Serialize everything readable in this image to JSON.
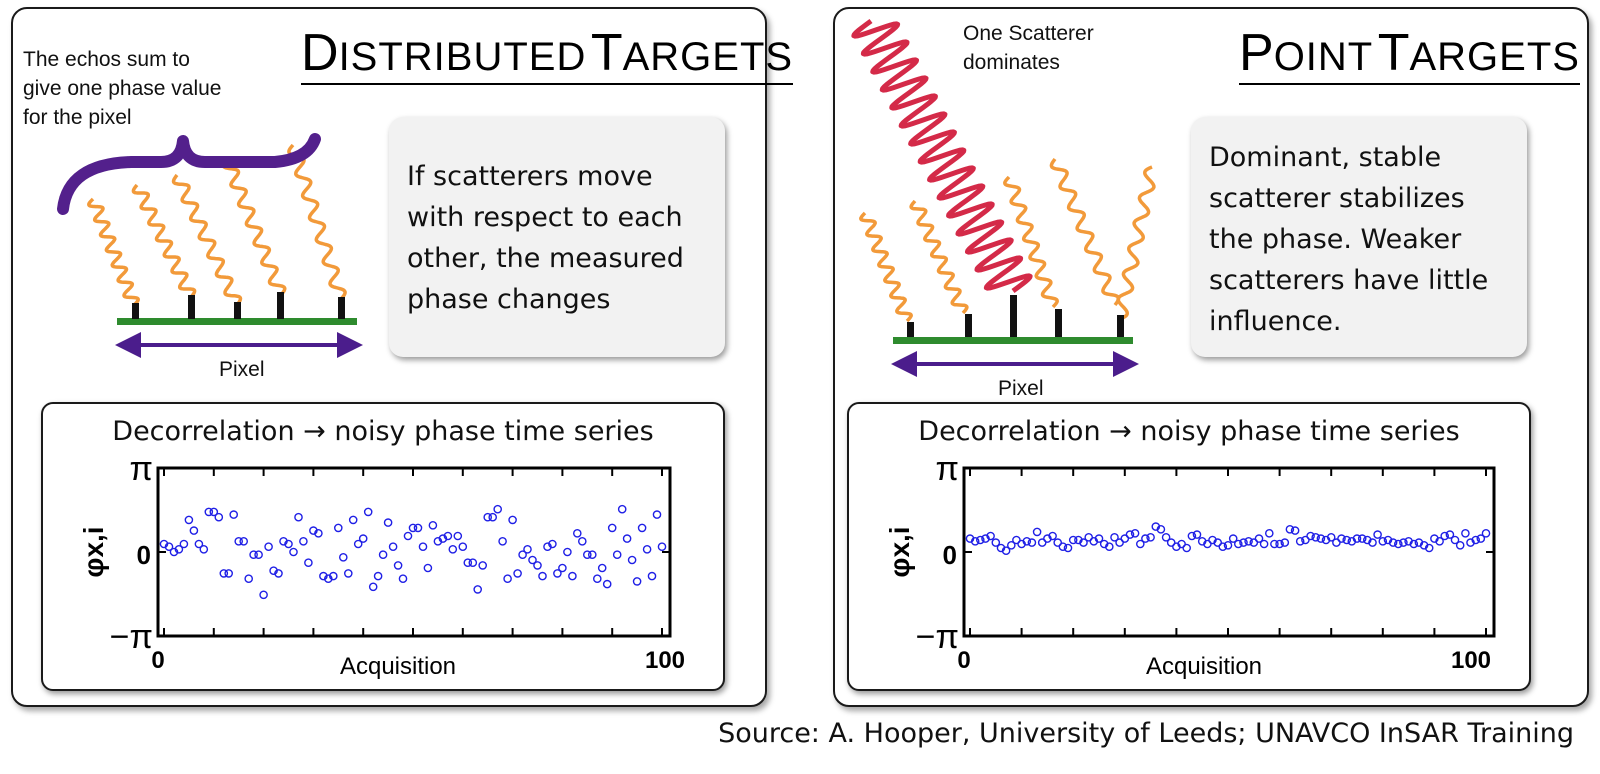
{
  "left": {
    "title_first_cap": "D",
    "title_first_rest": "ISTRIBUTED",
    "title_second_cap": "T",
    "title_second_rest": "ARGETS",
    "note_lines": [
      "The echos sum to",
      "give one phase value",
      "for the pixel"
    ],
    "textbox_lines": [
      "If scatterers move",
      "with respect to each",
      "other, the measured",
      "phase changes"
    ],
    "pixel_label": "Pixel",
    "plot_heading": "Decorrelation → noisy phase time series"
  },
  "right": {
    "title_first_cap": "P",
    "title_first_rest": "OINT",
    "title_second_cap": "T",
    "title_second_rest": "ARGETS",
    "note_lines": [
      "One Scatterer",
      "dominates"
    ],
    "textbox_lines": [
      "Dominant, stable",
      "scatterer stabilizes",
      "the phase. Weaker",
      "scatterers have little",
      "influence."
    ],
    "pixel_label": "Pixel",
    "plot_heading": "Decorrelation → noisy phase time series"
  },
  "colors": {
    "echo": "#f29a3a",
    "dominant_echo": "#d42a48",
    "brace": "#53208c",
    "ground": "#2e8b2e",
    "pixel_arrow": "#4b1d8c",
    "point": "#1f1fe6"
  },
  "chart_data": [
    {
      "type": "scatter",
      "title": "Decorrelation → noisy phase time series",
      "xlabel": "Acquisition",
      "ylabel": "φx,i",
      "xlim": [
        0,
        100
      ],
      "ylim": [
        -3.1416,
        3.1416
      ],
      "x_ticks": [
        "0",
        "100"
      ],
      "y_ticks": [
        "π",
        "0",
        "−π"
      ],
      "grid": false,
      "legend": "none",
      "x": [
        0,
        1,
        2,
        3,
        4,
        5,
        6,
        7,
        8,
        9,
        10,
        11,
        12,
        13,
        14,
        15,
        16,
        17,
        18,
        19,
        20,
        21,
        22,
        23,
        24,
        25,
        26,
        27,
        28,
        29,
        30,
        31,
        32,
        33,
        34,
        35,
        36,
        37,
        38,
        39,
        40,
        41,
        42,
        43,
        44,
        45,
        46,
        47,
        48,
        49,
        50,
        51,
        52,
        53,
        54,
        55,
        56,
        57,
        58,
        59,
        60,
        61,
        62,
        63,
        64,
        65,
        66,
        67,
        68,
        69,
        70,
        71,
        72,
        73,
        74,
        75,
        76,
        77,
        78,
        79,
        80,
        81,
        82,
        83,
        84,
        85,
        86,
        87,
        88,
        89,
        90,
        91,
        92,
        93,
        94,
        95,
        96,
        97,
        98,
        99,
        100
      ],
      "y": [
        0.3,
        0.2,
        0.0,
        0.1,
        0.3,
        1.2,
        0.8,
        0.3,
        0.1,
        1.5,
        1.5,
        1.3,
        -0.8,
        -0.8,
        1.4,
        0.4,
        0.4,
        -1.0,
        -0.1,
        -0.1,
        -1.6,
        0.2,
        -0.7,
        -0.8,
        0.4,
        0.3,
        0.0,
        1.3,
        0.4,
        -0.4,
        0.8,
        0.7,
        -0.9,
        -1.0,
        -0.9,
        0.9,
        -0.2,
        -0.8,
        1.2,
        0.3,
        0.5,
        1.5,
        -1.3,
        -0.9,
        -0.1,
        1.1,
        0.2,
        -0.5,
        -1.0,
        0.6,
        0.9,
        0.9,
        0.2,
        -0.6,
        1.0,
        0.4,
        0.5,
        0.6,
        0.1,
        0.6,
        0.2,
        -0.4,
        -0.4,
        -1.4,
        -0.5,
        1.3,
        1.3,
        1.6,
        0.4,
        -1.0,
        1.2,
        -0.8,
        -0.1,
        0.1,
        -0.3,
        -0.5,
        -0.9,
        0.2,
        0.3,
        -0.8,
        -0.6,
        0.0,
        -0.9,
        0.7,
        0.4,
        -0.1,
        -0.1,
        -1.0,
        -0.6,
        -1.2,
        0.9,
        -0.1,
        1.6,
        0.5,
        -0.3,
        -1.1,
        0.9,
        0.1,
        -0.9,
        1.4,
        0.2
      ]
    },
    {
      "type": "scatter",
      "title": "Decorrelation → noisy phase time series",
      "xlabel": "Acquisition",
      "ylabel": "φx,i",
      "xlim": [
        0,
        100
      ],
      "ylim": [
        -3.1416,
        3.1416
      ],
      "x_ticks": [
        "0",
        "100"
      ],
      "y_ticks": [
        "π",
        "0",
        "−π"
      ],
      "grid": false,
      "legend": "none",
      "x": [
        0,
        1,
        2,
        3,
        4,
        5,
        6,
        7,
        8,
        9,
        10,
        11,
        12,
        13,
        14,
        15,
        16,
        17,
        18,
        19,
        20,
        21,
        22,
        23,
        24,
        25,
        26,
        27,
        28,
        29,
        30,
        31,
        32,
        33,
        34,
        35,
        36,
        37,
        38,
        39,
        40,
        41,
        42,
        43,
        44,
        45,
        46,
        47,
        48,
        49,
        50,
        51,
        52,
        53,
        54,
        55,
        56,
        57,
        58,
        59,
        60,
        61,
        62,
        63,
        64,
        65,
        66,
        67,
        68,
        69,
        70,
        71,
        72,
        73,
        74,
        75,
        76,
        77,
        78,
        79,
        80,
        81,
        82,
        83,
        84,
        85,
        86,
        87,
        88,
        89,
        90,
        91,
        92,
        93,
        94,
        95,
        96,
        97,
        98,
        99,
        100
      ],
      "y": [
        0.5,
        0.4,
        0.45,
        0.5,
        0.6,
        0.35,
        0.15,
        0.05,
        0.25,
        0.45,
        0.3,
        0.4,
        0.35,
        0.75,
        0.35,
        0.5,
        0.6,
        0.35,
        0.2,
        0.15,
        0.45,
        0.45,
        0.35,
        0.55,
        0.4,
        0.5,
        0.3,
        0.2,
        0.55,
        0.35,
        0.5,
        0.65,
        0.7,
        0.3,
        0.5,
        0.55,
        0.95,
        0.85,
        0.55,
        0.35,
        0.2,
        0.3,
        0.15,
        0.6,
        0.65,
        0.4,
        0.3,
        0.45,
        0.35,
        0.2,
        0.25,
        0.5,
        0.3,
        0.35,
        0.4,
        0.35,
        0.5,
        0.3,
        0.7,
        0.3,
        0.3,
        0.35,
        0.85,
        0.8,
        0.4,
        0.45,
        0.6,
        0.55,
        0.5,
        0.45,
        0.55,
        0.35,
        0.5,
        0.45,
        0.4,
        0.5,
        0.5,
        0.45,
        0.35,
        0.65,
        0.4,
        0.45,
        0.35,
        0.3,
        0.35,
        0.4,
        0.3,
        0.35,
        0.25,
        0.15,
        0.5,
        0.4,
        0.6,
        0.65,
        0.45,
        0.25,
        0.7,
        0.35,
        0.45,
        0.5,
        0.7
      ]
    }
  ],
  "source": "Source: A. Hooper, University of Leeds; UNAVCO InSAR Training"
}
